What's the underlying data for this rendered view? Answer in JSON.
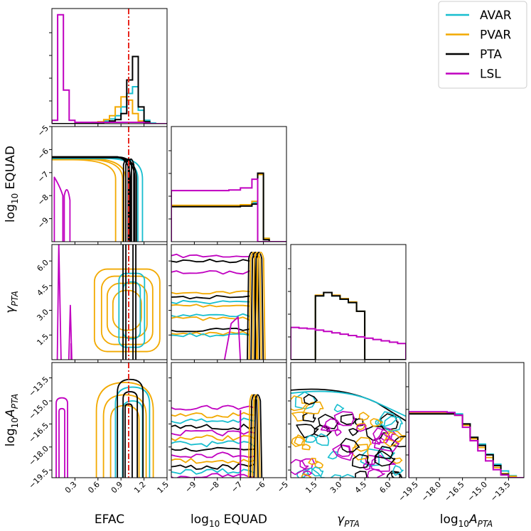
{
  "chart_data": {
    "type": "corner",
    "parameters": [
      {
        "key": "efac",
        "label": "EFAC",
        "range": [
          0.0,
          1.5
        ],
        "ticks": [
          "0.3",
          "0.6",
          "0.9",
          "1.2",
          "1.5"
        ],
        "truth": 1.0
      },
      {
        "key": "equad",
        "label": "log10 EQUAD",
        "range": [
          -10.0,
          -5.0
        ],
        "ticks": [
          "−9",
          "−8",
          "−7",
          "−6",
          "−5"
        ],
        "row_ticks": [
          "−5",
          "−6",
          "−7",
          "−8",
          "−9"
        ]
      },
      {
        "key": "gamma",
        "label": "γPTA",
        "range": [
          0.0,
          7.0
        ],
        "ticks": [
          "1.5",
          "3.0",
          "4.5",
          "6.0"
        ]
      },
      {
        "key": "amp",
        "label": "log10APTA",
        "range": [
          -20.0,
          -12.5
        ],
        "ticks": [
          "−19.5",
          "−18.0",
          "−16.5",
          "−15.0",
          "−13.5"
        ]
      }
    ],
    "axis_labels": {
      "x_efac": "EFAC",
      "x_equad_base": "log",
      "x_equad_sub": "10",
      "x_equad_rest": " EQUAD",
      "x_gamma_main": "γ",
      "x_gamma_sub": "PTA",
      "x_amp_base": "log",
      "x_amp_sub": "10",
      "x_amp_var": "A",
      "x_amp_sub2": "PTA",
      "y_equad_base": "log",
      "y_equad_sub": "10",
      "y_equad_rest": " EQUAD",
      "y_gamma_main": "γ",
      "y_gamma_sub": "PTA",
      "y_amp_base": "log",
      "y_amp_sub": "10",
      "y_amp_var": "A",
      "y_amp_sub2": "PTA"
    },
    "series": [
      {
        "name": "AVAR",
        "color": "#17becf"
      },
      {
        "name": "PVAR",
        "color": "#f2a900"
      },
      {
        "name": "PTA",
        "color": "#000000"
      },
      {
        "name": "LSL",
        "color": "#c000c0"
      }
    ],
    "truth_color": "#e8261e",
    "diagonal_hists": {
      "efac": {
        "edges": [
          0.0,
          0.075,
          0.15,
          0.225,
          0.3,
          0.375,
          0.45,
          0.525,
          0.6,
          0.675,
          0.75,
          0.825,
          0.9,
          0.975,
          1.05,
          1.125,
          1.2,
          1.275,
          1.35,
          1.425,
          1.5
        ],
        "AVAR": [
          0,
          0,
          0,
          0,
          0,
          0,
          0,
          0.01,
          0.02,
          0.04,
          0.07,
          0.12,
          0.25,
          0.45,
          0.55,
          0.2,
          0.05,
          0.01,
          0,
          0
        ],
        "PVAR": [
          0,
          0,
          0,
          0,
          0,
          0,
          0.01,
          0.02,
          0.03,
          0.06,
          0.12,
          0.25,
          0.4,
          0.35,
          0.15,
          0.04,
          0.01,
          0,
          0,
          0
        ],
        "PTA": [
          0,
          0,
          0,
          0,
          0,
          0,
          0,
          0,
          0.01,
          0.02,
          0.04,
          0.06,
          0.15,
          0.65,
          1.0,
          0.25,
          0.03,
          0,
          0,
          0
        ],
        "LSL": [
          0.05,
          1.62,
          0.5,
          0.05,
          0.02,
          0.02,
          0.02,
          0.02,
          0.02,
          0.02,
          0.02,
          0.02,
          0.02,
          0.02,
          0.02,
          0.02,
          0.01,
          0,
          0,
          0
        ]
      },
      "equad": {
        "edges": [
          -10.0,
          -9.5,
          -9.0,
          -8.5,
          -8.0,
          -7.5,
          -7.0,
          -6.5,
          -6.25,
          -6.0,
          -5.75,
          -5.5,
          -5.0
        ],
        "AVAR": [
          0.53,
          0.53,
          0.53,
          0.53,
          0.53,
          0.53,
          0.54,
          0.58,
          1.0,
          0.05,
          0.0,
          0.0
        ],
        "PVAR": [
          0.54,
          0.54,
          0.54,
          0.54,
          0.54,
          0.54,
          0.55,
          0.6,
          1.0,
          0.05,
          0.0,
          0.0
        ],
        "PTA": [
          0.52,
          0.52,
          0.52,
          0.52,
          0.52,
          0.52,
          0.53,
          0.56,
          1.02,
          0.03,
          0.0,
          0.0
        ],
        "LSL": [
          0.76,
          0.76,
          0.76,
          0.76,
          0.76,
          0.77,
          0.8,
          0.93,
          0.0,
          0.0,
          0.0,
          0.0
        ]
      },
      "gamma": {
        "edges": [
          0.0,
          0.5,
          1.0,
          1.5,
          2.0,
          2.5,
          3.0,
          3.5,
          4.0,
          4.5,
          5.0,
          5.5,
          6.0,
          6.5,
          7.0
        ],
        "AVAR": [
          0,
          0,
          0,
          0.95,
          1.0,
          0.95,
          0.9,
          0.85,
          0.72,
          0,
          0,
          0,
          0,
          0
        ],
        "PVAR": [
          0,
          0,
          0,
          0.96,
          1.0,
          0.96,
          0.91,
          0.86,
          0.72,
          0,
          0,
          0,
          0,
          0
        ],
        "PTA": [
          0,
          0,
          0,
          0.95,
          1.0,
          0.95,
          0.9,
          0.85,
          0.72,
          0,
          0,
          0,
          0,
          0
        ],
        "LSL": [
          0.48,
          0.47,
          0.46,
          0.44,
          0.42,
          0.4,
          0.38,
          0.36,
          0.34,
          0.32,
          0.3,
          0.28,
          0.26,
          0.24
        ]
      },
      "amp": {
        "edges": [
          -20.0,
          -19.5,
          -19.0,
          -18.5,
          -18.0,
          -17.5,
          -17.0,
          -16.5,
          -16.0,
          -15.5,
          -15.0,
          -14.5,
          -14.0,
          -13.5,
          -13.0,
          -12.5
        ],
        "AVAR": [
          0.96,
          0.96,
          0.96,
          0.96,
          0.97,
          0.97,
          0.95,
          0.8,
          0.6,
          0.5,
          0.35,
          0.2,
          0.1,
          0.03,
          0.0
        ],
        "PVAR": [
          0.97,
          0.97,
          0.97,
          0.97,
          0.97,
          0.96,
          0.93,
          0.78,
          0.58,
          0.45,
          0.3,
          0.15,
          0.06,
          0.02,
          0.0
        ],
        "PTA": [
          0.95,
          0.95,
          0.95,
          0.95,
          0.95,
          0.95,
          0.93,
          0.8,
          0.6,
          0.48,
          0.34,
          0.18,
          0.05,
          0.0,
          0.0
        ],
        "LSL": [
          0.98,
          0.98,
          0.98,
          0.98,
          0.98,
          0.97,
          0.93,
          0.75,
          0.55,
          0.4,
          0.25,
          0.12,
          0.04,
          0.0,
          0.0
        ]
      }
    },
    "legend": {
      "position": "top-right"
    }
  }
}
